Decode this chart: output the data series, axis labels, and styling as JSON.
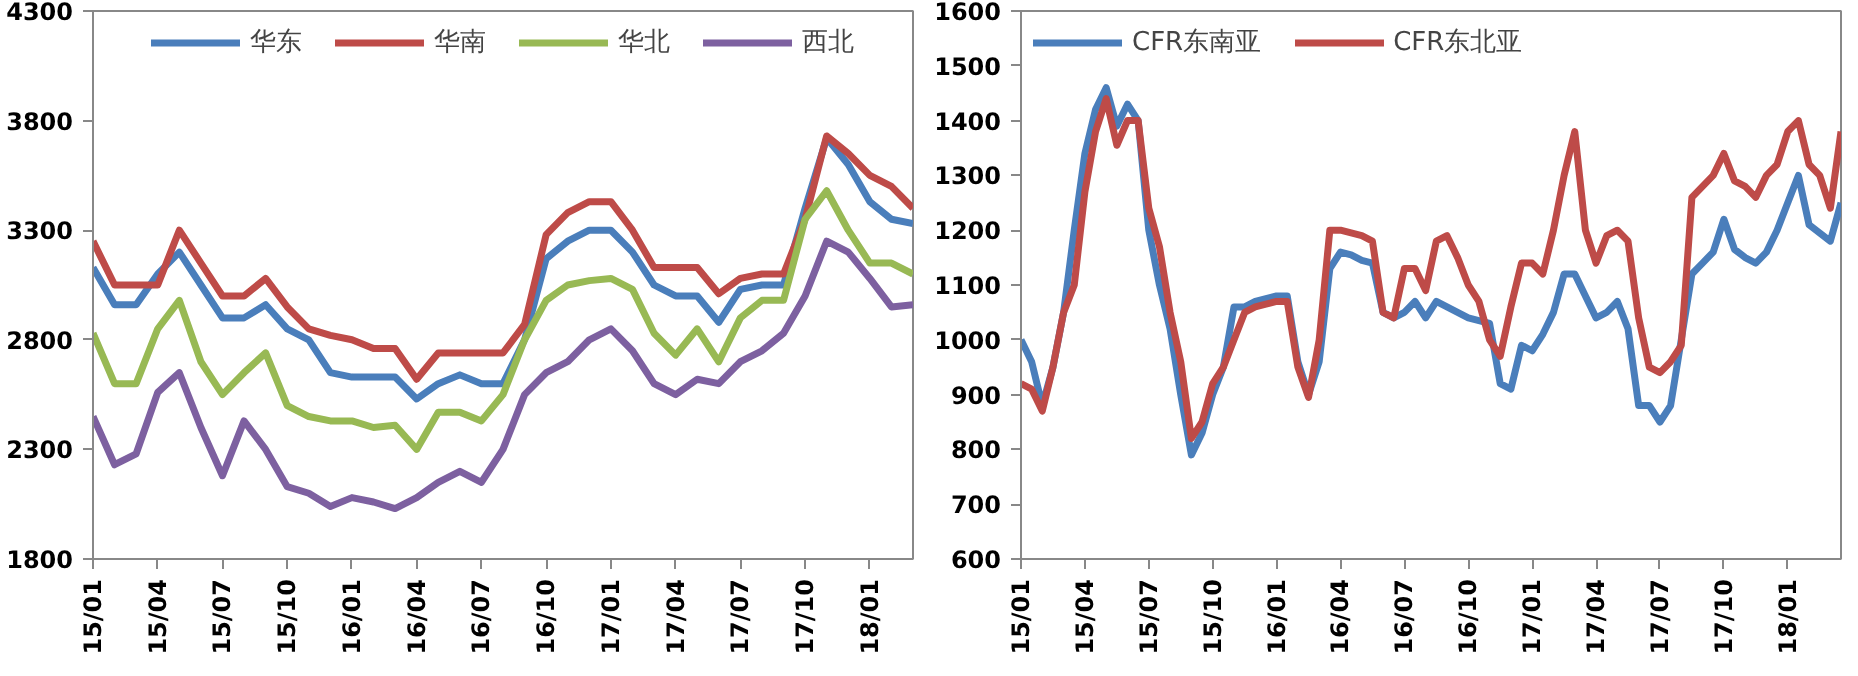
{
  "chart_data": [
    {
      "type": "line",
      "ylim": [
        1800,
        4300
      ],
      "yticks": [
        1800,
        2300,
        2800,
        3300,
        3800,
        4300
      ],
      "grid": false,
      "legend": "top",
      "marker": "none",
      "line_style": "solid",
      "categories": [
        "15/01",
        null,
        null,
        "15/04",
        null,
        null,
        "15/07",
        null,
        null,
        "15/10",
        null,
        null,
        "16/01",
        null,
        null,
        "16/04",
        null,
        null,
        "16/07",
        null,
        null,
        "16/10",
        null,
        null,
        "17/01",
        null,
        null,
        "17/04",
        null,
        null,
        "17/07",
        null,
        null,
        "17/10",
        null,
        null,
        "18/01",
        null,
        null
      ],
      "series": [
        {
          "name": "华东",
          "color": "#4a7ebb",
          "values": [
            3130,
            2960,
            2960,
            3100,
            3200,
            3050,
            2900,
            2900,
            2960,
            2850,
            2800,
            2650,
            2630,
            2630,
            2630,
            2530,
            2600,
            2640,
            2600,
            2600,
            2800,
            3170,
            3250,
            3300,
            3300,
            3200,
            3050,
            3000,
            3000,
            2880,
            3030,
            3050,
            3050,
            3400,
            3720,
            3600,
            3430,
            3350,
            3330
          ]
        },
        {
          "name": "华南",
          "color": "#be4b48",
          "values": [
            3250,
            3050,
            3050,
            3050,
            3300,
            3150,
            3000,
            3000,
            3080,
            2950,
            2850,
            2820,
            2800,
            2760,
            2760,
            2620,
            2740,
            2740,
            2740,
            2740,
            2870,
            3280,
            3380,
            3430,
            3430,
            3300,
            3130,
            3130,
            3130,
            3010,
            3080,
            3100,
            3100,
            3350,
            3730,
            3650,
            3550,
            3500,
            3400
          ]
        },
        {
          "name": "华北",
          "color": "#98b954",
          "values": [
            2830,
            2600,
            2600,
            2850,
            2980,
            2700,
            2550,
            2650,
            2740,
            2500,
            2450,
            2430,
            2430,
            2400,
            2410,
            2300,
            2470,
            2470,
            2430,
            2550,
            2800,
            2980,
            3050,
            3070,
            3080,
            3030,
            2830,
            2730,
            2850,
            2700,
            2900,
            2980,
            2980,
            3350,
            3480,
            3300,
            3150,
            3150,
            3100
          ]
        },
        {
          "name": "西北",
          "color": "#7d60a0",
          "values": [
            2450,
            2230,
            2280,
            2560,
            2650,
            2400,
            2180,
            2430,
            2300,
            2130,
            2100,
            2040,
            2080,
            2060,
            2030,
            2080,
            2150,
            2200,
            2150,
            2300,
            2550,
            2650,
            2700,
            2800,
            2850,
            2750,
            2600,
            2550,
            2620,
            2600,
            2700,
            2750,
            2830,
            3000,
            3250,
            3200,
            3080,
            2950,
            2960
          ]
        }
      ]
    },
    {
      "type": "line",
      "ylim": [
        600,
        1600
      ],
      "yticks": [
        600,
        700,
        800,
        900,
        1000,
        1100,
        1200,
        1300,
        1400,
        1500,
        1600
      ],
      "grid": false,
      "legend": "top left",
      "marker": "none",
      "line_style": "solid",
      "categories": [
        "15/01",
        null,
        null,
        null,
        null,
        null,
        "15/04",
        null,
        null,
        null,
        null,
        null,
        "15/07",
        null,
        null,
        null,
        null,
        null,
        "15/10",
        null,
        null,
        null,
        null,
        null,
        "16/01",
        null,
        null,
        null,
        null,
        null,
        "16/04",
        null,
        null,
        null,
        null,
        null,
        "16/07",
        null,
        null,
        null,
        null,
        null,
        "16/10",
        null,
        null,
        null,
        null,
        null,
        "17/01",
        null,
        null,
        null,
        null,
        null,
        "17/04",
        null,
        null,
        null,
        null,
        null,
        "17/07",
        null,
        null,
        null,
        null,
        null,
        "17/10",
        null,
        null,
        null,
        null,
        null,
        "18/01",
        null,
        null,
        null,
        null,
        null
      ],
      "series": [
        {
          "name": "CFR东南亚",
          "color": "#4a7ebb",
          "values": [
            1000,
            960,
            880,
            950,
            1050,
            1200,
            1340,
            1420,
            1460,
            1390,
            1430,
            1400,
            1200,
            1100,
            1020,
            900,
            790,
            830,
            900,
            950,
            1060,
            1060,
            1070,
            1075,
            1080,
            1080,
            960,
            900,
            960,
            1130,
            1160,
            1155,
            1145,
            1140,
            1050,
            1040,
            1050,
            1070,
            1040,
            1070,
            1060,
            1050,
            1040,
            1035,
            1030,
            920,
            910,
            990,
            980,
            1010,
            1050,
            1120,
            1120,
            1080,
            1040,
            1050,
            1070,
            1020,
            880,
            880,
            850,
            880,
            1000,
            1120,
            1140,
            1160,
            1220,
            1165,
            1150,
            1140,
            1160,
            1200,
            1250,
            1300,
            1210,
            1195,
            1180,
            1250
          ]
        },
        {
          "name": "CFR东北亚",
          "color": "#be4b48",
          "values": [
            920,
            910,
            870,
            950,
            1050,
            1100,
            1270,
            1380,
            1440,
            1355,
            1400,
            1400,
            1240,
            1170,
            1050,
            960,
            820,
            850,
            920,
            950,
            1000,
            1050,
            1060,
            1065,
            1070,
            1070,
            950,
            895,
            1000,
            1200,
            1200,
            1195,
            1190,
            1180,
            1050,
            1040,
            1130,
            1130,
            1090,
            1180,
            1190,
            1150,
            1100,
            1070,
            1000,
            970,
            1060,
            1140,
            1140,
            1120,
            1200,
            1300,
            1380,
            1200,
            1140,
            1190,
            1200,
            1180,
            1040,
            950,
            940,
            960,
            990,
            1260,
            1280,
            1300,
            1340,
            1290,
            1280,
            1260,
            1300,
            1320,
            1380,
            1400,
            1320,
            1300,
            1240,
            1380
          ]
        }
      ]
    }
  ]
}
